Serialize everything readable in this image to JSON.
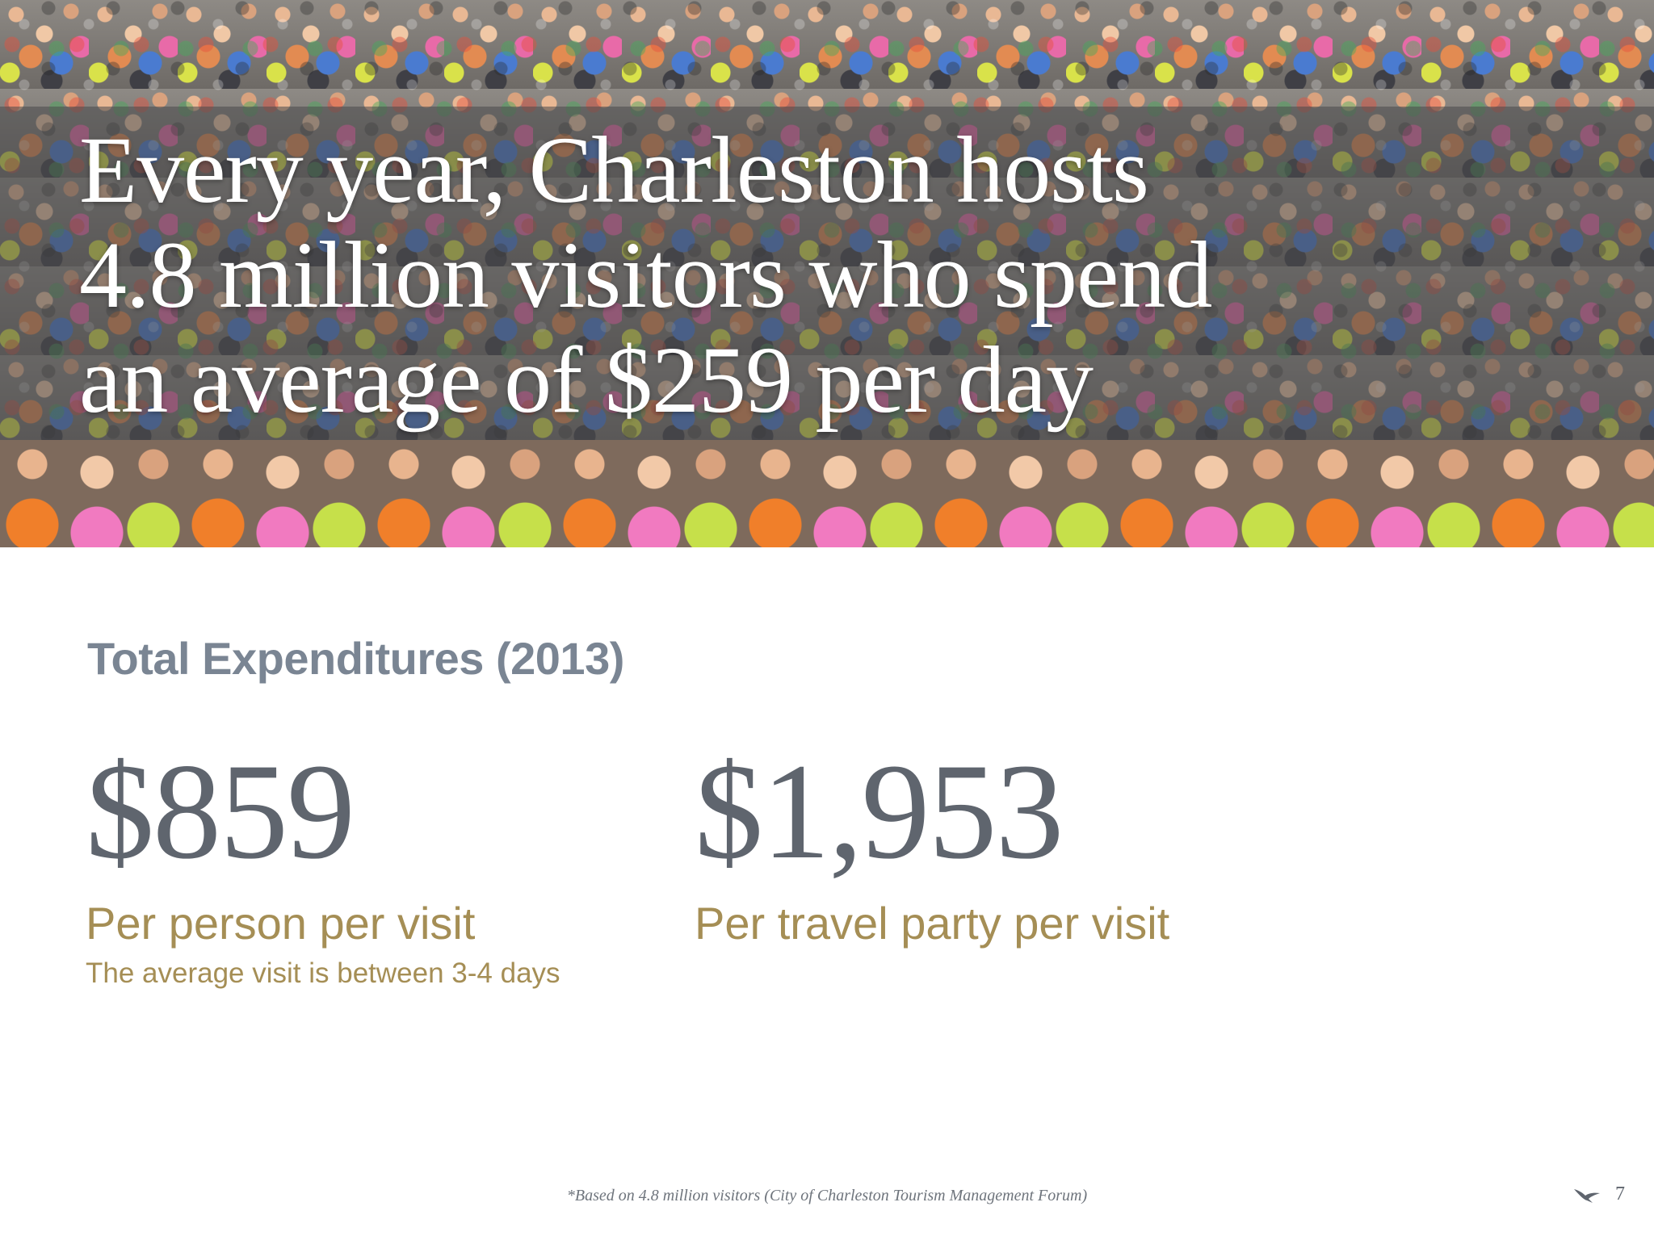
{
  "hero": {
    "headline_lines": [
      "Every year, Charleston hosts",
      "4.8 million visitors who spend",
      "an average of $259 per day"
    ]
  },
  "section": {
    "title": "Total Expenditures (2013)"
  },
  "stats": [
    {
      "value": "$859",
      "label": "Per person per visit",
      "note": "The average visit is between 3-4 days"
    },
    {
      "value": "$1,953",
      "label": "Per travel party per visit"
    }
  ],
  "footer": {
    "footnote": "*Based on 4.8 million visitors (City of Charleston Tourism Management Forum)",
    "page_number": "7",
    "icon": "bird-icon"
  },
  "colors": {
    "value_gray": "#5f656e",
    "title_gray": "#7a8593",
    "gold": "#a58e55"
  }
}
